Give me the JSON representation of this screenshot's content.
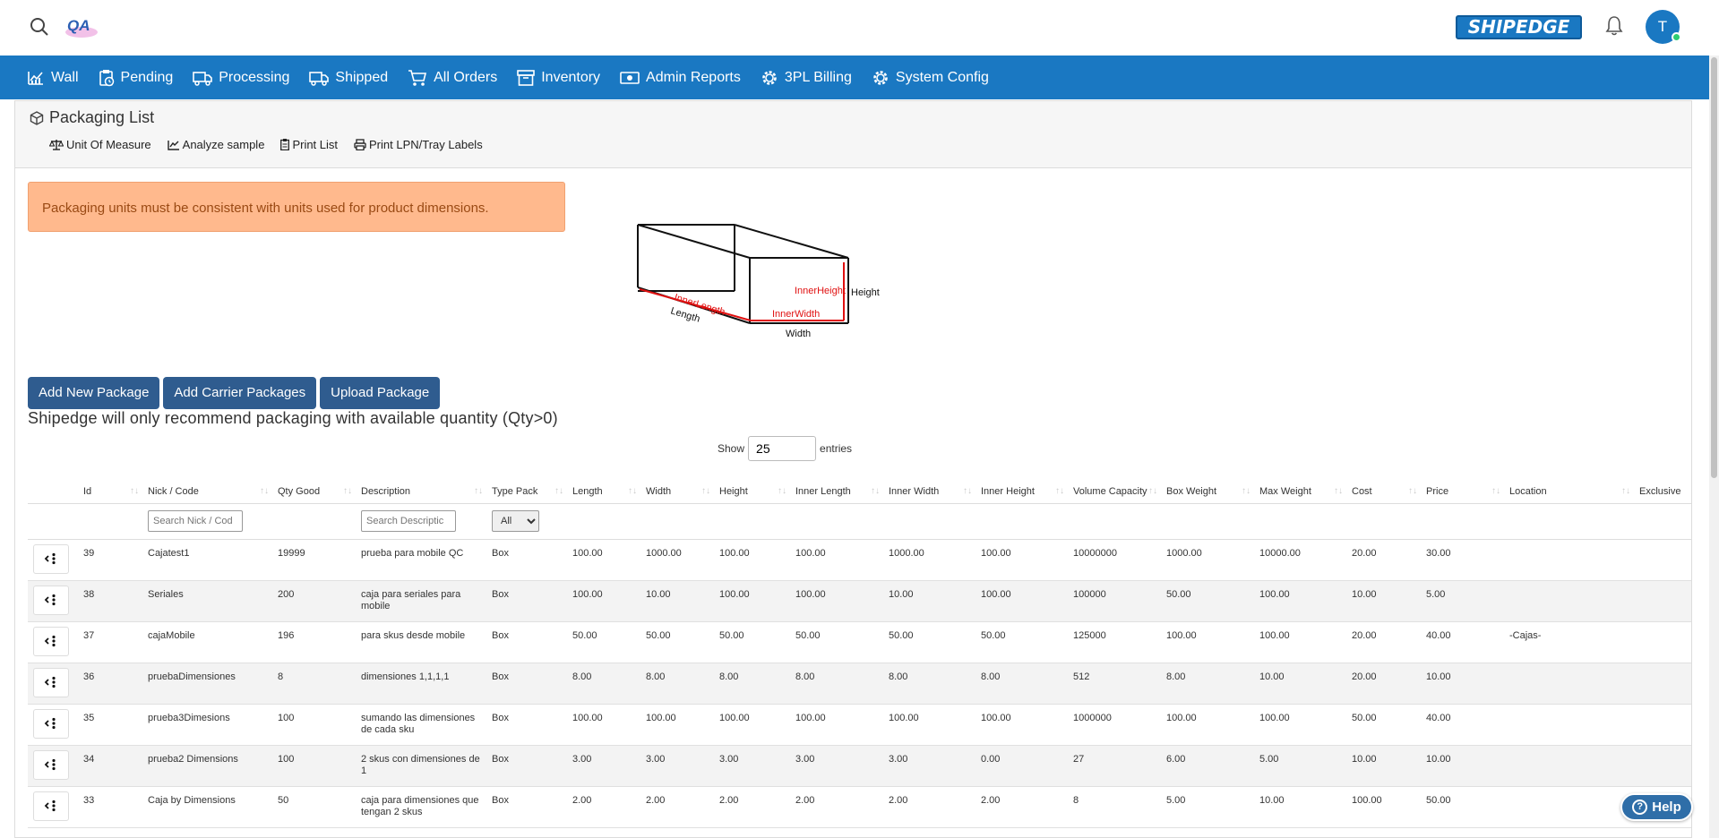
{
  "header": {
    "logo_text": "QA",
    "brand": "SHIPEDGE",
    "user_initial": "T"
  },
  "nav": [
    {
      "label": "Wall",
      "icon": "chart-icon"
    },
    {
      "label": "Pending",
      "icon": "clipboard-clock-icon"
    },
    {
      "label": "Processing",
      "icon": "truck-icon"
    },
    {
      "label": "Shipped",
      "icon": "truck-fast-icon"
    },
    {
      "label": "All Orders",
      "icon": "cart-icon"
    },
    {
      "label": "Inventory",
      "icon": "archive-icon"
    },
    {
      "label": "Admin Reports",
      "icon": "money-icon"
    },
    {
      "label": "3PL Billing",
      "icon": "gear-icon"
    },
    {
      "label": "System Config",
      "icon": "gear-icon"
    }
  ],
  "page": {
    "title": "Packaging List",
    "toolbar": [
      "Unit Of Measure",
      "Analyze sample",
      "Print List",
      "Print LPN/Tray Labels"
    ],
    "alert": "Packaging units must be consistent with units used for product dimensions.",
    "diagram_labels": {
      "inner_length": "InnerLength",
      "length": "Length",
      "inner_width": "InnerWidth",
      "width": "Width",
      "inner_height": "InnerHeight",
      "height": "Height"
    },
    "buttons": [
      "Add New Package",
      "Add Carrier Packages",
      "Upload Package"
    ],
    "notice": "Shipedge will only recommend packaging with available quantity (Qty>0)",
    "show_label": "Show",
    "show_value": "25",
    "entries_label": "entries"
  },
  "table": {
    "columns": [
      "",
      "Id",
      "Nick / Code",
      "Qty Good",
      "Description",
      "Type Pack",
      "Length",
      "Width",
      "Height",
      "Inner Length",
      "Inner Width",
      "Inner Height",
      "Volume Capacity",
      "Box Weight",
      "Max Weight",
      "Cost",
      "Price",
      "Location",
      "Exclusive"
    ],
    "filters": {
      "nick_placeholder": "Search Nick / Cod",
      "description_placeholder": "Search Descriptic",
      "type_selected": "All"
    },
    "rows": [
      [
        "39",
        "Cajatest1",
        "19999",
        "prueba para mobile QC",
        "Box",
        "100.00",
        "1000.00",
        "100.00",
        "100.00",
        "1000.00",
        "100.00",
        "10000000",
        "1000.00",
        "10000.00",
        "20.00",
        "30.00",
        "",
        ""
      ],
      [
        "38",
        "Seriales",
        "200",
        "caja para seriales para mobile",
        "Box",
        "100.00",
        "10.00",
        "100.00",
        "100.00",
        "10.00",
        "100.00",
        "100000",
        "50.00",
        "100.00",
        "10.00",
        "5.00",
        "",
        ""
      ],
      [
        "37",
        "cajaMobile",
        "196",
        "para skus desde mobile",
        "Box",
        "50.00",
        "50.00",
        "50.00",
        "50.00",
        "50.00",
        "50.00",
        "125000",
        "100.00",
        "100.00",
        "20.00",
        "40.00",
        "-Cajas-",
        ""
      ],
      [
        "36",
        "pruebaDimensiones",
        "8",
        "dimensiones 1,1,1,1",
        "Box",
        "8.00",
        "8.00",
        "8.00",
        "8.00",
        "8.00",
        "8.00",
        "512",
        "8.00",
        "10.00",
        "20.00",
        "10.00",
        "",
        ""
      ],
      [
        "35",
        "prueba3Dimesions",
        "100",
        "sumando las dimensiones de cada sku",
        "Box",
        "100.00",
        "100.00",
        "100.00",
        "100.00",
        "100.00",
        "100.00",
        "1000000",
        "100.00",
        "100.00",
        "50.00",
        "40.00",
        "",
        ""
      ],
      [
        "34",
        "prueba2 Dimensions",
        "100",
        "2 skus con dimensiones de 1",
        "Box",
        "3.00",
        "3.00",
        "3.00",
        "3.00",
        "3.00",
        "0.00",
        "27",
        "6.00",
        "5.00",
        "10.00",
        "10.00",
        "",
        ""
      ],
      [
        "33",
        "Caja by Dimensions",
        "50",
        "caja para dimensiones que tengan 2 skus",
        "Box",
        "2.00",
        "2.00",
        "2.00",
        "2.00",
        "2.00",
        "2.00",
        "8",
        "5.00",
        "10.00",
        "100.00",
        "50.00",
        "",
        ""
      ]
    ]
  },
  "help_label": "Help"
}
